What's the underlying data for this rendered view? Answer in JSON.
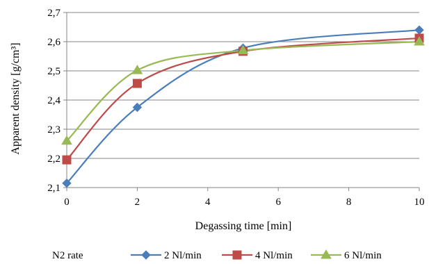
{
  "chart_data": {
    "type": "line",
    "title": "",
    "xlabel": "Degassing time [min]",
    "ylabel": "Apparent density [g/cm³]",
    "xlim": [
      0,
      10
    ],
    "ylim": [
      2.1,
      2.7
    ],
    "x_ticks": [
      0,
      2,
      4,
      6,
      8,
      10
    ],
    "x_tick_labels": [
      "0",
      "2",
      "4",
      "6",
      "8",
      "10"
    ],
    "y_ticks": [
      2.1,
      2.2,
      2.3,
      2.4,
      2.5,
      2.6,
      2.7
    ],
    "y_tick_labels": [
      "2,1",
      "2,2",
      "2,3",
      "2,4",
      "2,5",
      "2,6",
      "2,7"
    ],
    "grid": "horizontal",
    "legend_position": "bottom",
    "legend_title": "N2 rate",
    "series": [
      {
        "name": "2 Nl/min",
        "color": "#4a7ebb",
        "marker": "diamond",
        "x": [
          0,
          2,
          5,
          10
        ],
        "values": [
          2.115,
          2.375,
          2.578,
          2.64
        ]
      },
      {
        "name": "4 Nl/min",
        "color": "#be4b48",
        "marker": "square",
        "x": [
          0,
          2,
          5,
          10
        ],
        "values": [
          2.195,
          2.457,
          2.567,
          2.612
        ]
      },
      {
        "name": "6 Nl/min",
        "color": "#98b954",
        "marker": "triangle",
        "x": [
          0,
          2,
          5,
          10
        ],
        "values": [
          2.26,
          2.502,
          2.57,
          2.6
        ]
      }
    ]
  }
}
